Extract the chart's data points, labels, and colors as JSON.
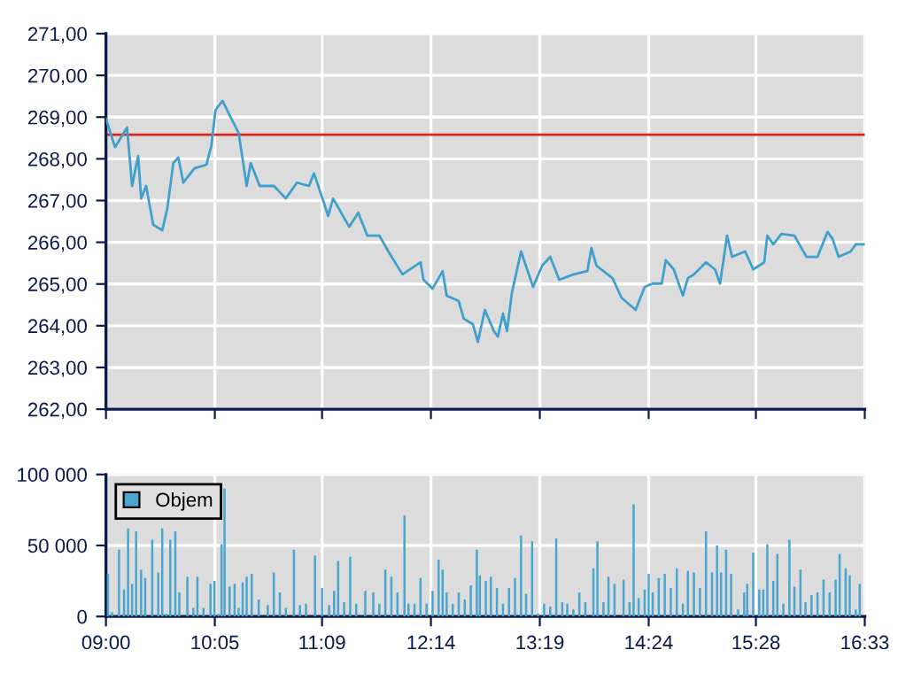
{
  "chart_data": [
    {
      "type": "line",
      "xlim": [
        9,
        16.55
      ],
      "xticks": [
        {
          "value": 9,
          "label": null
        },
        {
          "value": 10.0833,
          "label": null
        },
        {
          "value": 11.15,
          "label": null
        },
        {
          "value": 12.2333,
          "label": null
        },
        {
          "value": 13.3167,
          "label": null
        },
        {
          "value": 14.4,
          "label": null
        },
        {
          "value": 15.4667,
          "label": null
        },
        {
          "value": 16.55,
          "label": null
        }
      ],
      "ylim": [
        262,
        271
      ],
      "yticks": [
        {
          "value": 262,
          "label": "262,00"
        },
        {
          "value": 263,
          "label": "263,00"
        },
        {
          "value": 264,
          "label": "264,00"
        },
        {
          "value": 265,
          "label": "265,00"
        },
        {
          "value": 266,
          "label": "266,00"
        },
        {
          "value": 267,
          "label": "267,00"
        },
        {
          "value": 268,
          "label": "268,00"
        },
        {
          "value": 269,
          "label": "269,00"
        },
        {
          "value": 270,
          "label": "270,00"
        },
        {
          "value": 271,
          "label": "271,00"
        }
      ],
      "grid": true,
      "tick_labels": "y",
      "series": [
        {
          "color": "#3fa0cc",
          "x": [
            9.0,
            9.09,
            9.21,
            9.26,
            9.32,
            9.35,
            9.4,
            9.47,
            9.56,
            9.61,
            9.67,
            9.72,
            9.77,
            9.88,
            10.0,
            10.05,
            10.09,
            10.16,
            10.23,
            10.32,
            10.4,
            10.44,
            10.53,
            10.67,
            10.79,
            10.9,
            11.02,
            11.07,
            11.16,
            11.21,
            11.26,
            11.34,
            11.42,
            11.51,
            11.6,
            11.72,
            11.81,
            11.95,
            12.13,
            12.16,
            12.25,
            12.35,
            12.39,
            12.51,
            12.56,
            12.65,
            12.7,
            12.77,
            12.86,
            12.9,
            12.95,
            12.99,
            13.04,
            13.13,
            13.25,
            13.34,
            13.42,
            13.51,
            13.65,
            13.79,
            13.83,
            13.88,
            14.04,
            14.13,
            14.27,
            14.36,
            14.44,
            14.53,
            14.57,
            14.65,
            14.74,
            14.79,
            14.85,
            14.97,
            15.06,
            15.11,
            15.18,
            15.23,
            15.36,
            15.44,
            15.55,
            15.58,
            15.64,
            15.72,
            15.85,
            15.97,
            16.08,
            16.18,
            16.23,
            16.29,
            16.41,
            16.46,
            16.55
          ],
          "values": [
            268.96,
            268.28,
            268.75,
            267.35,
            268.07,
            267.05,
            267.35,
            266.42,
            266.29,
            266.8,
            267.9,
            268.03,
            267.43,
            267.77,
            267.86,
            268.33,
            269.17,
            269.39,
            269.05,
            268.62,
            267.35,
            267.9,
            267.35,
            267.35,
            267.05,
            267.43,
            267.35,
            267.65,
            267.01,
            266.63,
            267.05,
            266.71,
            266.37,
            266.71,
            266.16,
            266.16,
            265.78,
            265.23,
            265.52,
            265.1,
            264.89,
            265.31,
            264.72,
            264.59,
            264.17,
            264.04,
            263.61,
            264.38,
            263.87,
            263.74,
            264.29,
            263.87,
            264.8,
            265.78,
            264.93,
            265.44,
            265.65,
            265.1,
            265.23,
            265.31,
            265.86,
            265.44,
            265.14,
            264.67,
            264.38,
            264.93,
            265.01,
            265.01,
            265.57,
            265.35,
            264.72,
            265.14,
            265.23,
            265.52,
            265.35,
            265.01,
            266.16,
            265.65,
            265.78,
            265.35,
            265.52,
            266.16,
            265.95,
            266.2,
            266.16,
            265.65,
            265.65,
            266.25,
            266.08,
            265.65,
            265.78,
            265.95,
            265.95
          ]
        }
      ],
      "ref_lines": [
        {
          "axis": "y",
          "value": 268.58,
          "color": "#dd2222"
        }
      ]
    },
    {
      "type": "bar",
      "xlim": [
        9,
        16.55
      ],
      "xticks": [
        {
          "value": 9,
          "label": "09:00"
        },
        {
          "value": 10.0833,
          "label": "10:05"
        },
        {
          "value": 11.15,
          "label": "11:09"
        },
        {
          "value": 12.2333,
          "label": "12:14"
        },
        {
          "value": 13.3167,
          "label": "13:19"
        },
        {
          "value": 14.4,
          "label": "14:24"
        },
        {
          "value": 15.4667,
          "label": "15:28"
        },
        {
          "value": 16.55,
          "label": "16:33"
        }
      ],
      "ylim": [
        0,
        100000
      ],
      "yticks": [
        0,
        {
          "value": 50000,
          "label": "50 000"
        },
        {
          "value": 100000,
          "label": "100 000"
        }
      ],
      "grid": true,
      "legend": "top left",
      "series": [
        {
          "name": "Objem",
          "color": "#4aa6cf",
          "x": [
            9.02,
            9.06,
            9.13,
            9.18,
            9.22,
            9.26,
            9.3,
            9.35,
            9.39,
            9.46,
            9.52,
            9.56,
            9.6,
            9.64,
            9.69,
            9.73,
            9.81,
            9.87,
            9.91,
            9.97,
            10.04,
            10.08,
            10.12,
            10.15,
            10.18,
            10.23,
            10.28,
            10.32,
            10.36,
            10.4,
            10.45,
            10.52,
            10.61,
            10.67,
            10.73,
            10.79,
            10.87,
            10.93,
            10.99,
            11.08,
            11.15,
            11.22,
            11.27,
            11.31,
            11.37,
            11.43,
            11.49,
            11.58,
            11.66,
            11.72,
            11.78,
            11.84,
            11.9,
            11.97,
            12.01,
            12.07,
            12.13,
            12.19,
            12.25,
            12.31,
            12.35,
            12.39,
            12.45,
            12.51,
            12.57,
            12.63,
            12.69,
            12.72,
            12.78,
            12.83,
            12.89,
            12.95,
            13.01,
            13.07,
            13.13,
            13.18,
            13.24,
            13.3,
            13.36,
            13.42,
            13.48,
            13.54,
            13.59,
            13.65,
            13.71,
            13.77,
            13.85,
            13.89,
            13.95,
            14.0,
            14.06,
            14.15,
            14.21,
            14.25,
            14.3,
            14.36,
            14.4,
            14.44,
            14.5,
            14.56,
            14.62,
            14.68,
            14.74,
            14.79,
            14.85,
            14.91,
            14.97,
            15.03,
            15.08,
            15.12,
            15.17,
            15.22,
            15.29,
            15.35,
            15.38,
            15.44,
            15.5,
            15.54,
            15.58,
            15.64,
            15.68,
            15.74,
            15.8,
            15.85,
            15.91,
            15.96,
            16.02,
            16.08,
            16.14,
            16.2,
            16.26,
            16.3,
            16.36,
            16.4,
            16.46,
            16.5
          ],
          "values": [
            30000,
            3000,
            47000,
            19000,
            62000,
            23000,
            60000,
            33000,
            27000,
            54000,
            31000,
            62000,
            2000,
            54000,
            60000,
            17000,
            28000,
            6000,
            28000,
            6000,
            23000,
            25000,
            2000,
            51000,
            90000,
            21000,
            23000,
            6000,
            24000,
            28000,
            30000,
            12000,
            8000,
            31000,
            17000,
            6000,
            47000,
            8000,
            9000,
            43000,
            20000,
            8000,
            18000,
            39000,
            10000,
            42000,
            9000,
            18000,
            17000,
            9000,
            33000,
            28000,
            17000,
            71000,
            9000,
            9000,
            27000,
            9000,
            18000,
            40000,
            33000,
            17000,
            9000,
            17000,
            12000,
            22000,
            47000,
            29000,
            25000,
            28000,
            20000,
            9000,
            20000,
            27000,
            57000,
            16000,
            53000,
            2000,
            9000,
            7000,
            55000,
            10000,
            9000,
            5000,
            17000,
            10000,
            34000,
            53000,
            10000,
            28000,
            23000,
            26000,
            10000,
            79000,
            13000,
            19000,
            30000,
            17000,
            27000,
            30000,
            20000,
            34000,
            9000,
            32000,
            31000,
            20000,
            60000,
            31000,
            50000,
            31000,
            47000,
            30000,
            5000,
            17000,
            23000,
            45000,
            19000,
            19000,
            51000,
            25000,
            44000,
            9000,
            54000,
            21000,
            33000,
            10000,
            15000,
            17000,
            26000,
            17000,
            26000,
            44000,
            34000,
            29000,
            5000,
            23000
          ]
        }
      ]
    }
  ]
}
